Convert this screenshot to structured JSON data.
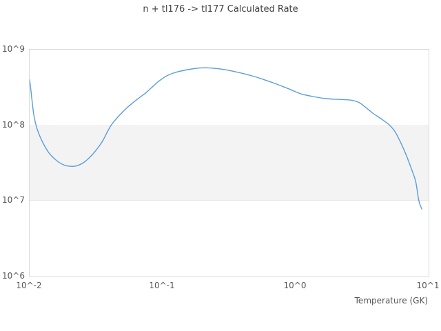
{
  "chart": {
    "title": "n + tl176 -> tl177 Calculated Rate",
    "xlabel": "Temperature (GK)"
  },
  "colors": {
    "line": "#5b9dd9",
    "band_fill": "#f3f3f3",
    "band_edge": "#e6e6e6",
    "frame": "#d9d9d9",
    "tick_text": "#555555",
    "title_text": "#3f3f3f"
  },
  "chart_data": {
    "type": "line",
    "title": "n + tl176 -> tl177 Calculated Rate",
    "xlabel": "Temperature (GK)",
    "ylabel": "",
    "x_scale": "log",
    "y_scale": "log",
    "xlim": [
      0.01,
      10
    ],
    "ylim": [
      1000000,
      1000000000
    ],
    "grid": false,
    "legend": "none",
    "x_ticks": [
      {
        "label": "10^-2",
        "value": 0.01
      },
      {
        "label": "10^-1",
        "value": 0.1
      },
      {
        "label": "10^0",
        "value": 1
      },
      {
        "label": "10^1",
        "value": 10
      }
    ],
    "y_ticks": [
      {
        "label": "10^9",
        "value": 1000000000
      },
      {
        "label": "10^8",
        "value": 100000000
      },
      {
        "label": "10^7",
        "value": 10000000
      },
      {
        "label": "10^6",
        "value": 1000000
      }
    ],
    "shaded_band_y": [
      10000000,
      100000000
    ],
    "series": [
      {
        "name": "Calculated Rate",
        "x": [
          0.01,
          0.0102,
          0.0105,
          0.0107,
          0.011,
          0.0115,
          0.0125,
          0.014,
          0.016,
          0.018,
          0.02,
          0.0225,
          0.026,
          0.03,
          0.035,
          0.041,
          0.05,
          0.06,
          0.075,
          0.085,
          0.095,
          0.11,
          0.13,
          0.16,
          0.19,
          0.22,
          0.26,
          0.31,
          0.38,
          0.47,
          0.58,
          0.72,
          0.9,
          1.1,
          1.35,
          1.7,
          2.1,
          2.6,
          3.0,
          3.4,
          3.8,
          4.3,
          4.7,
          5.1,
          5.6,
          6.2,
          6.8,
          7.4,
          8.0,
          8.45,
          8.9
        ],
        "y": [
          400000000.0,
          300000000.0,
          190000000.0,
          145000000.0,
          112000000.0,
          85000000.0,
          60000000.0,
          43000000.0,
          34000000.0,
          30000000.0,
          28700000.0,
          29000000.0,
          33000000.0,
          42000000.0,
          60000000.0,
          100000000.0,
          150000000.0,
          200000000.0,
          270000000.0,
          330000000.0,
          390000000.0,
          460000000.0,
          510000000.0,
          550000000.0,
          572000000.0,
          575000000.0,
          560000000.0,
          535000000.0,
          495000000.0,
          450000000.0,
          400000000.0,
          350000000.0,
          300000000.0,
          260000000.0,
          240000000.0,
          225000000.0,
          220000000.0,
          215000000.0,
          200000000.0,
          170000000.0,
          145000000.0,
          125000000.0,
          112000000.0,
          100000000.0,
          82000000.0,
          58000000.0,
          40000000.0,
          27000000.0,
          18000000.0,
          10000000.0,
          7800000.0
        ]
      }
    ]
  }
}
